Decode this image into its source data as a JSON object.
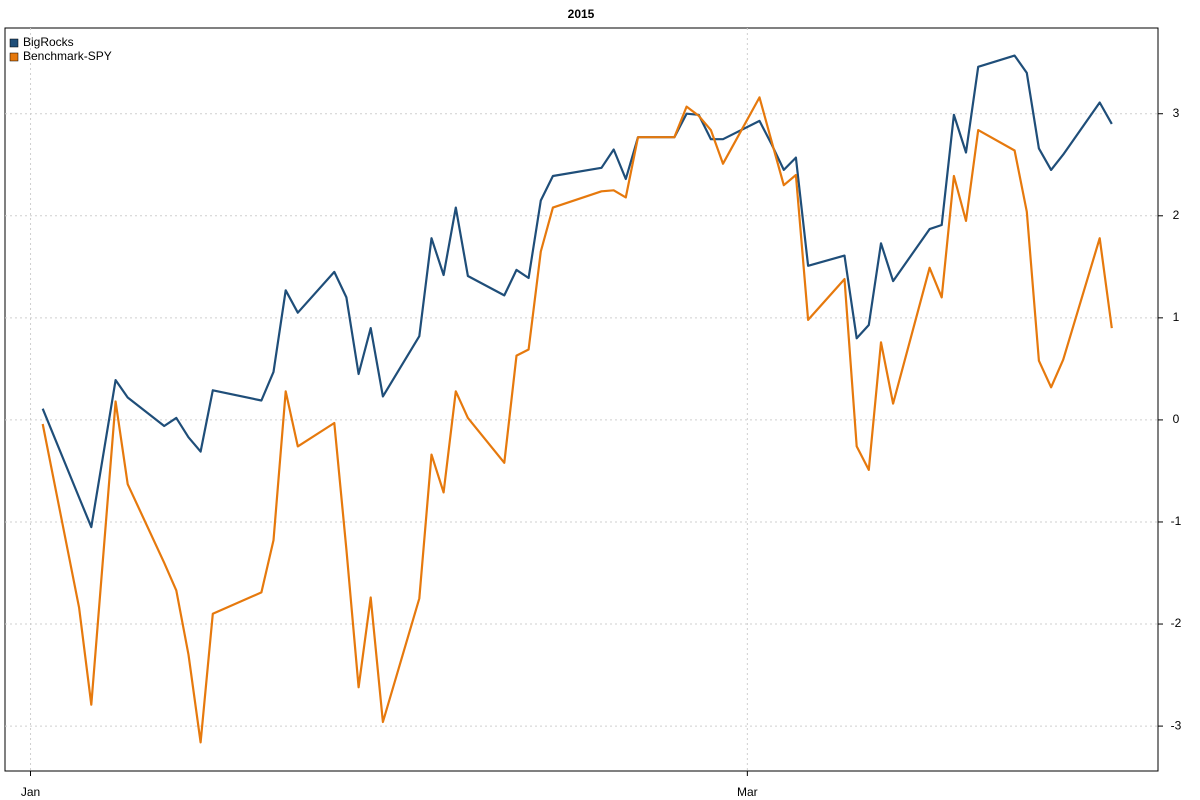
{
  "chart_data": {
    "type": "line",
    "title": "2015",
    "x": [
      1,
      4,
      5,
      7,
      8,
      11,
      12,
      13,
      14,
      15,
      19,
      20,
      21,
      22,
      25,
      26,
      27,
      28,
      29,
      32,
      33,
      34,
      35,
      36,
      39,
      40,
      41,
      42,
      43,
      47,
      48,
      49,
      50,
      53,
      54,
      55,
      56,
      57,
      60,
      61,
      62,
      63,
      64,
      67,
      68,
      69,
      70,
      71,
      74,
      75,
      76,
      77,
      78,
      81,
      82,
      83,
      84,
      85,
      88,
      89
    ],
    "series": [
      {
        "name": "BigRocks",
        "color": "#1f4e79",
        "values": [
          0.11,
          -0.76,
          -1.05,
          0.39,
          0.22,
          -0.06,
          0.02,
          -0.17,
          -0.31,
          0.29,
          0.19,
          0.47,
          1.27,
          1.05,
          1.45,
          1.2,
          0.45,
          0.9,
          0.23,
          0.82,
          1.78,
          1.42,
          2.08,
          1.41,
          1.22,
          1.47,
          1.39,
          2.15,
          2.39,
          2.47,
          2.65,
          2.36,
          2.77,
          2.77,
          3.0,
          2.99,
          2.75,
          2.75,
          2.93,
          2.7,
          2.45,
          2.57,
          1.51,
          1.61,
          0.8,
          0.93,
          1.73,
          1.36,
          1.87,
          1.91,
          2.99,
          2.62,
          3.46,
          3.57,
          3.4,
          2.66,
          2.45,
          2.6,
          3.11,
          2.9
        ]
      },
      {
        "name": "Benchmark-SPY",
        "color": "#e6790d",
        "values": [
          -0.04,
          -1.84,
          -2.79,
          0.18,
          -0.63,
          -1.4,
          -1.67,
          -2.3,
          -3.16,
          -1.9,
          -1.69,
          -1.18,
          0.28,
          -0.26,
          -0.03,
          -1.27,
          -2.62,
          -1.74,
          -2.96,
          -1.75,
          -0.34,
          -0.71,
          0.28,
          0.02,
          -0.42,
          0.63,
          0.69,
          1.65,
          2.08,
          2.24,
          2.25,
          2.18,
          2.77,
          2.77,
          3.07,
          2.98,
          2.84,
          2.51,
          3.16,
          2.73,
          2.3,
          2.4,
          0.98,
          1.38,
          -0.26,
          -0.49,
          0.76,
          0.16,
          1.49,
          1.2,
          2.39,
          1.95,
          2.84,
          2.64,
          2.04,
          0.58,
          0.32,
          0.59,
          1.78,
          0.9
        ]
      }
    ],
    "xlim": [
      -2.1,
      92.8
    ],
    "xticks": [
      {
        "value": 0,
        "label": "Jan"
      },
      {
        "value": 59,
        "label": "Mar"
      }
    ],
    "ylim": [
      -3.44,
      3.84
    ],
    "yticks": [
      -3,
      -2,
      -1,
      0,
      1,
      2,
      3
    ],
    "grid": true,
    "legend": "topleft"
  }
}
